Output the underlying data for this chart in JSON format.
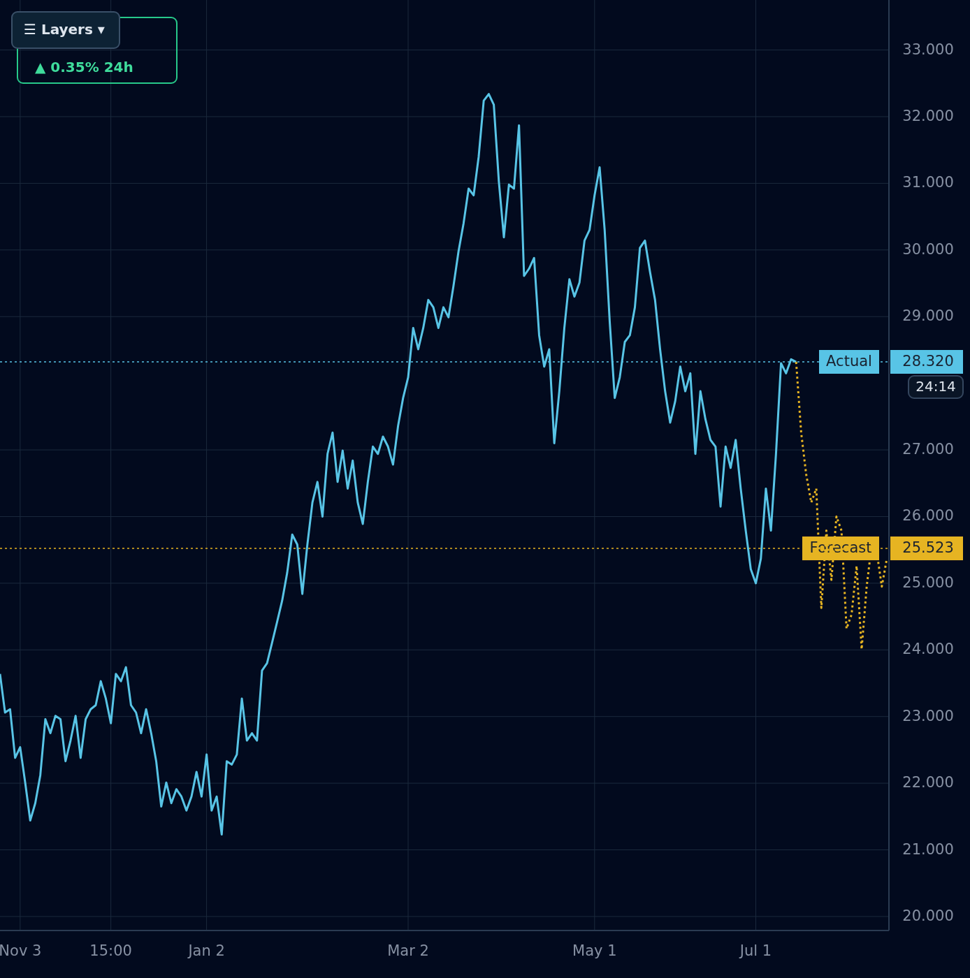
{
  "chart_data": {
    "type": "line",
    "categories": [
      null,
      null,
      null,
      null,
      "Nov 3",
      null,
      null,
      null,
      null,
      null,
      null,
      null,
      null,
      null,
      null,
      null,
      null,
      null,
      null,
      null,
      null,
      null,
      "15:00",
      null,
      null,
      null,
      null,
      null,
      null,
      null,
      null,
      null,
      null,
      null,
      null,
      null,
      null,
      null,
      null,
      null,
      null,
      "Jan 2",
      null,
      null,
      null,
      null,
      null,
      null,
      null,
      null,
      null,
      null,
      null,
      null,
      null,
      null,
      null,
      null,
      null,
      null,
      null,
      null,
      null,
      null,
      null,
      null,
      null,
      null,
      null,
      null,
      null,
      null,
      null,
      null,
      null,
      null,
      null,
      null,
      null,
      null,
      null,
      "Mar 2",
      null,
      null,
      null,
      null,
      null,
      null,
      null,
      null,
      null,
      null,
      null,
      null,
      null,
      null,
      null,
      null,
      null,
      null,
      null,
      null,
      null,
      null,
      null,
      null,
      null,
      null,
      null,
      null,
      null,
      null,
      null,
      null,
      null,
      null,
      null,
      null,
      "May 1",
      null,
      null,
      null,
      null,
      null,
      null,
      null,
      null,
      null,
      null,
      null,
      null,
      null,
      null,
      null,
      null,
      null,
      null,
      null,
      null,
      null,
      null,
      null,
      null,
      null,
      null,
      null,
      null,
      null,
      null,
      null,
      "Jul 1",
      null,
      null,
      null,
      null,
      null,
      null,
      null,
      null,
      null,
      null,
      null,
      null,
      null,
      null,
      null,
      null,
      null,
      null,
      null,
      null,
      null,
      null,
      null,
      null,
      null,
      null
    ],
    "ylim": [
      19.79,
      33.75
    ],
    "yticks": [
      {
        "value": 20,
        "label": "20.000"
      },
      {
        "value": 21,
        "label": "21.000"
      },
      {
        "value": 22,
        "label": "22.000"
      },
      {
        "value": 23,
        "label": "23.000"
      },
      {
        "value": 24,
        "label": "24.000"
      },
      {
        "value": 25,
        "label": "25.000"
      },
      {
        "value": 26,
        "label": "26.000"
      },
      {
        "value": 27,
        "label": "27.000"
      },
      {
        "value": 29,
        "label": "29.000"
      },
      {
        "value": 30,
        "label": "30.000"
      },
      {
        "value": 31,
        "label": "31.000"
      },
      {
        "value": 32,
        "label": "32.000"
      },
      {
        "value": 33,
        "label": "33.000"
      }
    ],
    "grid": true,
    "marker": "none",
    "series": [
      {
        "color": "#58c4e6",
        "line_style": "solid",
        "values": [
          23.64,
          23.06,
          23.11,
          22.38,
          22.54,
          22.01,
          21.44,
          21.7,
          22.12,
          22.96,
          22.75,
          23.01,
          22.96,
          22.33,
          22.64,
          23.01,
          22.38,
          22.96,
          23.11,
          23.17,
          23.53,
          23.27,
          22.9,
          23.64,
          23.53,
          23.74,
          23.17,
          23.06,
          22.75,
          23.11,
          22.75,
          22.33,
          21.65,
          22.01,
          21.7,
          21.91,
          21.8,
          21.59,
          21.8,
          22.17,
          21.8,
          22.43,
          21.59,
          21.8,
          21.23,
          22.33,
          22.28,
          22.43,
          23.27,
          22.64,
          22.75,
          22.64,
          23.69,
          23.8,
          24.11,
          24.42,
          24.74,
          25.16,
          25.73,
          25.58,
          24.84,
          25.58,
          26.21,
          26.52,
          26.0,
          26.94,
          27.26,
          26.52,
          26.99,
          26.42,
          26.84,
          26.21,
          25.89,
          26.52,
          27.05,
          26.94,
          27.2,
          27.05,
          26.78,
          27.36,
          27.78,
          28.09,
          28.83,
          28.51,
          28.83,
          29.25,
          29.14,
          28.83,
          29.14,
          28.99,
          29.46,
          29.98,
          30.4,
          30.92,
          30.82,
          31.4,
          32.24,
          32.34,
          32.18,
          31.03,
          30.19,
          30.98,
          30.92,
          31.87,
          29.61,
          29.72,
          29.88,
          28.72,
          28.25,
          28.51,
          27.1,
          27.88,
          28.83,
          29.56,
          29.3,
          29.51,
          30.14,
          30.3,
          30.82,
          31.24,
          30.3,
          28.93,
          27.78,
          28.09,
          28.62,
          28.72,
          29.14,
          30.03,
          30.14,
          29.67,
          29.25,
          28.51,
          27.88,
          27.41,
          27.73,
          28.25,
          27.88,
          28.15,
          26.94,
          27.88,
          27.46,
          27.15,
          27.05,
          26.15,
          27.05,
          26.73,
          27.15,
          26.42,
          25.79,
          25.21,
          25.0,
          25.37,
          26.42,
          25.79,
          26.94,
          28.3,
          28.15,
          28.36,
          28.32,
          null,
          null,
          null,
          null,
          null,
          null,
          null,
          null,
          null,
          null,
          null,
          null,
          null,
          null,
          null,
          null,
          null,
          null
        ]
      },
      {
        "color": "#e6b422",
        "line_style": "dotted",
        "values": [
          null,
          null,
          null,
          null,
          null,
          null,
          null,
          null,
          null,
          null,
          null,
          null,
          null,
          null,
          null,
          null,
          null,
          null,
          null,
          null,
          null,
          null,
          null,
          null,
          null,
          null,
          null,
          null,
          null,
          null,
          null,
          null,
          null,
          null,
          null,
          null,
          null,
          null,
          null,
          null,
          null,
          null,
          null,
          null,
          null,
          null,
          null,
          null,
          null,
          null,
          null,
          null,
          null,
          null,
          null,
          null,
          null,
          null,
          null,
          null,
          null,
          null,
          null,
          null,
          null,
          null,
          null,
          null,
          null,
          null,
          null,
          null,
          null,
          null,
          null,
          null,
          null,
          null,
          null,
          null,
          null,
          null,
          null,
          null,
          null,
          null,
          null,
          null,
          null,
          null,
          null,
          null,
          null,
          null,
          null,
          null,
          null,
          null,
          null,
          null,
          null,
          null,
          null,
          null,
          null,
          null,
          null,
          null,
          null,
          null,
          null,
          null,
          null,
          null,
          null,
          null,
          null,
          null,
          null,
          null,
          null,
          null,
          null,
          null,
          null,
          null,
          null,
          null,
          null,
          null,
          null,
          null,
          null,
          null,
          null,
          null,
          null,
          null,
          null,
          null,
          null,
          null,
          null,
          null,
          null,
          null,
          null,
          null,
          null,
          null,
          null,
          null,
          null,
          null,
          null,
          null,
          null,
          null,
          28.32,
          27.26,
          26.63,
          26.21,
          26.42,
          24.63,
          25.79,
          25.05,
          26.0,
          25.79,
          24.32,
          24.53,
          25.26,
          24.01,
          24.95,
          25.58,
          25.47,
          24.95,
          25.37
        ]
      }
    ],
    "ref_lines": [
      {
        "axis": "y",
        "value": 28.32,
        "label": "Actual",
        "color": "#58c4e6",
        "line_style": "dotted"
      },
      {
        "axis": "y",
        "value": 25.523,
        "label": "Forecast",
        "color": "#e6b422",
        "line_style": "dotted"
      }
    ],
    "annotations": [
      "▲ 0.35% 24h",
      "☰ Layers ▾",
      "24:14",
      "28.320",
      "25.523"
    ]
  }
}
